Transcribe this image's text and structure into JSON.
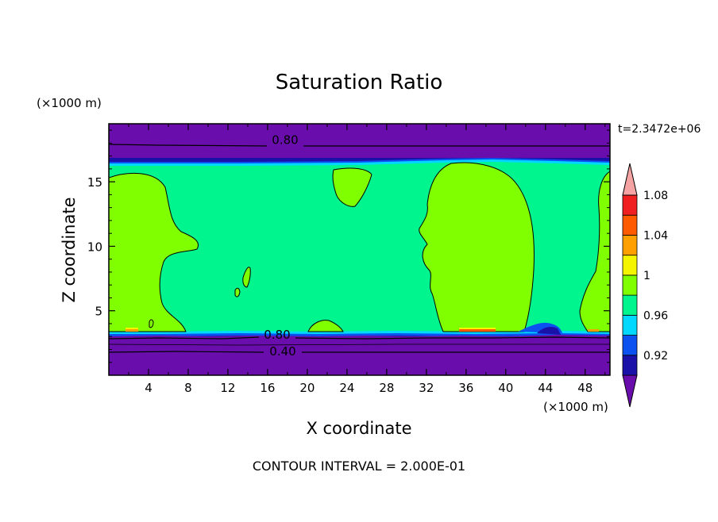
{
  "chart_data": {
    "type": "heatmap",
    "title": "Saturation Ratio",
    "xlabel": "X coordinate",
    "ylabel": "Z coordinate",
    "x_unit": "(×1000 m)",
    "y_unit": "(×1000 m)",
    "time_label": "t=2.3472e+06",
    "footer": "CONTOUR INTERVAL = 2.000E-01",
    "xlim": [
      0,
      50.5
    ],
    "ylim": [
      0,
      19.5
    ],
    "x_ticks": [
      4,
      8,
      12,
      16,
      20,
      24,
      28,
      32,
      36,
      40,
      44,
      48
    ],
    "y_ticks": [
      5,
      10,
      15
    ],
    "colorbar": {
      "levels": [
        0.92,
        0.94,
        0.96,
        0.98,
        1,
        1.02,
        1.04,
        1.06,
        1.08,
        1.1
      ],
      "labels": [
        "0.92",
        "0.96",
        "1",
        "1.04",
        "1.08"
      ],
      "colors": [
        "#6a0dad",
        "#1a12a8",
        "#0b52f0",
        "#00d8ff",
        "#00f58f",
        "#80ff00",
        "#f5f500",
        "#ffa000",
        "#ff5a00",
        "#f02020",
        "#f5a3a3"
      ]
    },
    "contours": [
      {
        "label": "0.80",
        "z": 18.3
      },
      {
        "label": "0.80",
        "z": 3.2
      },
      {
        "label": "0.40",
        "z": 1.9
      }
    ]
  }
}
